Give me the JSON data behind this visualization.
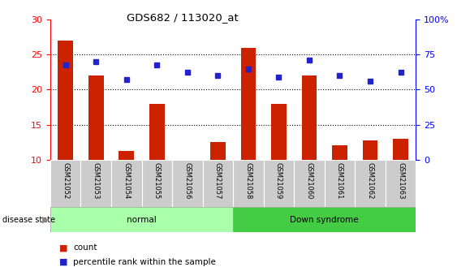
{
  "title": "GDS682 / 113020_at",
  "samples": [
    "GSM21052",
    "GSM21053",
    "GSM21054",
    "GSM21055",
    "GSM21056",
    "GSM21057",
    "GSM21058",
    "GSM21059",
    "GSM21060",
    "GSM21061",
    "GSM21062",
    "GSM21063"
  ],
  "count_values": [
    27,
    22,
    11.2,
    18,
    10,
    12.5,
    26,
    18,
    22,
    12,
    12.7,
    13
  ],
  "percentile_values": [
    23.5,
    24,
    21.4,
    23.5,
    22.5,
    22,
    23,
    21.8,
    24.2,
    22,
    21.2,
    22.5
  ],
  "bar_color": "#cc2200",
  "dot_color": "#2222cc",
  "ylim_left": [
    10,
    30
  ],
  "ylim_right": [
    0,
    100
  ],
  "yticks_left": [
    10,
    15,
    20,
    25,
    30
  ],
  "yticks_right": [
    0,
    25,
    50,
    75,
    100
  ],
  "ytick_right_labels": [
    "0",
    "25",
    "50",
    "75",
    "100%"
  ],
  "normal_color": "#aaffaa",
  "down_color": "#44cc44",
  "tick_bg_color": "#cccccc",
  "bar_width": 0.5,
  "dot_size": 5
}
